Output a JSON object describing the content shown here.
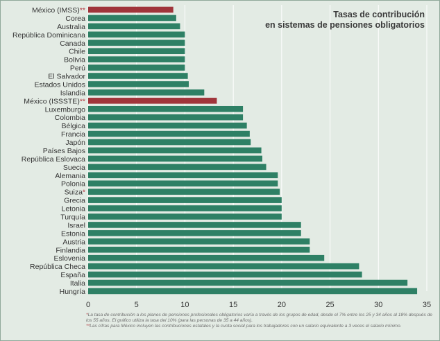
{
  "chart_data": {
    "type": "bar",
    "orientation": "horizontal",
    "title_lines": [
      "Tasas de contribución",
      "en sistemas de pensiones obligatorios"
    ],
    "categories": [
      "México (IMSS)",
      "Corea",
      "Australia",
      "República Dominicana",
      "Canada",
      "Chile",
      "Bolivia",
      "Perú",
      "El Salvador",
      "Estados Unidos",
      "Islandia",
      "México (ISSSTE)",
      "Luxemburgo",
      "Colombia",
      "Bélgica",
      "Francia",
      "Japón",
      "Países Bajos",
      "República Eslovaca",
      "Suecia",
      "Alemania",
      "Polonia",
      "Suiza",
      "Grecia",
      "Letonia",
      "Turquía",
      "Israel",
      "Estonia",
      "Austria",
      "Finlandia",
      "Eslovenia",
      "República Checa",
      "España",
      "Italia",
      "Hungría"
    ],
    "markers": [
      "**",
      "",
      "",
      "",
      "",
      "",
      "",
      "",
      "",
      "",
      "",
      "**",
      "",
      "",
      "",
      "",
      "",
      "",
      "",
      "",
      "",
      "",
      "*",
      "",
      "",
      "",
      "",
      "",
      "",
      "",
      "",
      "",
      "",
      "",
      ""
    ],
    "values": [
      8.8,
      9.1,
      9.5,
      10,
      10,
      10,
      10,
      10,
      10.3,
      10.4,
      12,
      13.3,
      16,
      16,
      16.4,
      16.7,
      16.8,
      17.9,
      18,
      18.4,
      19.6,
      19.6,
      19.8,
      20,
      20,
      20,
      22,
      22,
      22.9,
      22.9,
      24.4,
      28,
      28.3,
      33,
      34
    ],
    "highlight": [
      true,
      false,
      false,
      false,
      false,
      false,
      false,
      false,
      false,
      false,
      false,
      true,
      false,
      false,
      false,
      false,
      false,
      false,
      false,
      false,
      false,
      false,
      false,
      false,
      false,
      false,
      false,
      false,
      false,
      false,
      false,
      false,
      false,
      false,
      false
    ],
    "xlim": [
      0,
      35
    ],
    "xticks": [
      0,
      5,
      10,
      15,
      20,
      25,
      30,
      35
    ],
    "grid": true,
    "colors": {
      "bar": "#2e8065",
      "highlight": "#a0353b",
      "grid": "#ffffff",
      "marker": "#b0323b"
    }
  },
  "notes": [
    {
      "marker": "*",
      "text": "La tasa de contribución a los planes de pensiones profesionales obligatorios varía a través de los grupos de edad, desde el 7% entre los 25 y 34 años al 18% después de los 55 años. El gráfico utiliza la tasa del 10% (para las personas de 35 a 44 años)."
    },
    {
      "marker": "**",
      "text": "Las cifras para México incluyen las contribuciones estatales y la cuota social para los trabajadores con un salario equivalente a 3 veces el salario mínimo."
    }
  ]
}
